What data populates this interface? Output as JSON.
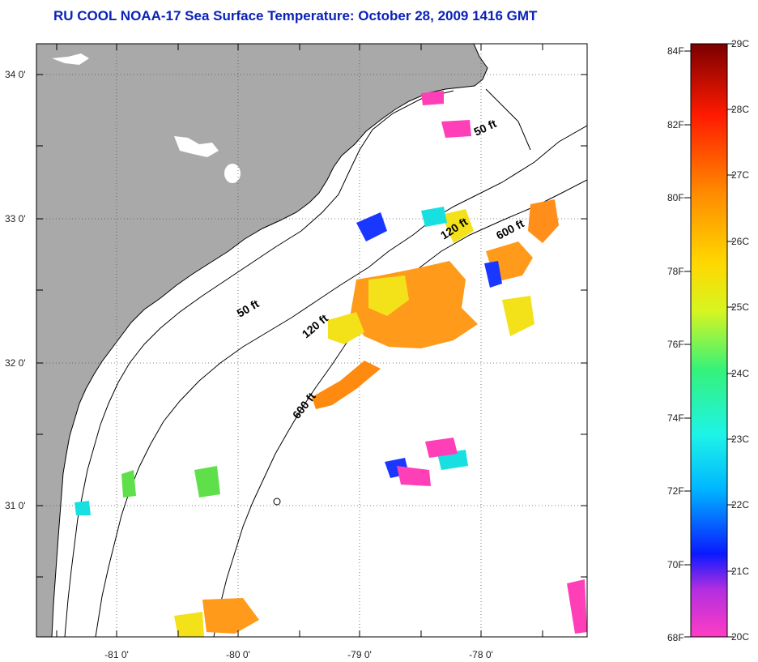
{
  "title": "RU COOL  NOAA-17  Sea Surface Temperature:  October 28, 2009 1416 GMT",
  "lon_labels": [
    "-81 0'",
    "-80 0'",
    "-79 0'",
    "-78 0'"
  ],
  "lat_labels": [
    "34 0'",
    "33 0'",
    "32 0'",
    "31 0'"
  ],
  "contours": {
    "nearshore": [
      "50 ft",
      "50 ft"
    ],
    "mid": [
      "120 ft",
      "120 ft"
    ],
    "shelf_break": [
      "600 ft",
      "600 ft"
    ]
  },
  "colorbar": {
    "fahrenheit": [
      "84F",
      "82F",
      "80F",
      "78F",
      "76F",
      "74F",
      "72F",
      "70F",
      "68F"
    ],
    "celsius": [
      "29C",
      "28C",
      "27C",
      "26C",
      "25C",
      "24C",
      "23C",
      "22C",
      "21C",
      "20C"
    ],
    "gradient": [
      "#ff3dc4",
      "#b22ee0",
      "#0a1aff",
      "#00b7ff",
      "#1ef3e8",
      "#35f27a",
      "#d8f520",
      "#ffd800",
      "#ff8a00",
      "#ff1a00",
      "#7a0000"
    ]
  },
  "colors": {
    "land": "#a9a9a9",
    "ocean": "#ffffff",
    "title": "#0b22b8",
    "warm": "#ff9a1a",
    "yellow": "#f3e21a",
    "cool": "#1a37ff",
    "cyan": "#19e0e0",
    "magenta": "#ff3fb8",
    "green": "#5fe04a"
  }
}
